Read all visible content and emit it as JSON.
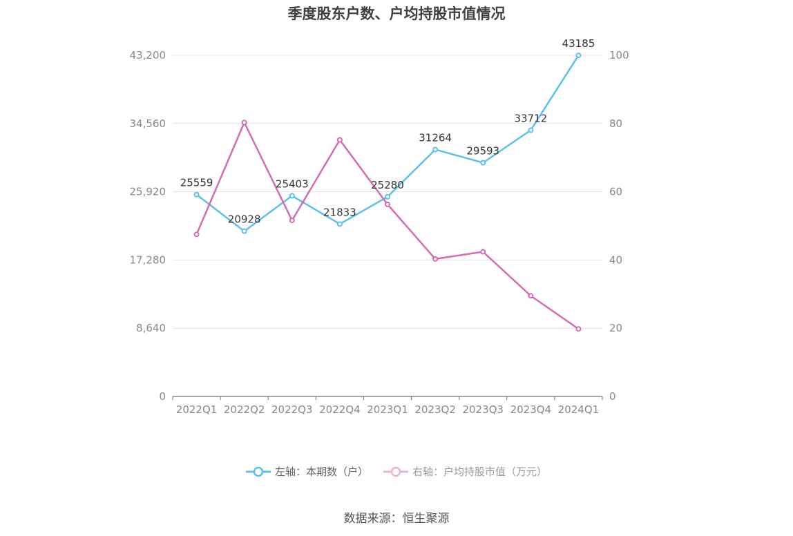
{
  "title": "季度股东户数、户均持股市值情况",
  "chart_data": {
    "type": "line",
    "categories": [
      "2022Q1",
      "2022Q2",
      "2022Q3",
      "2022Q4",
      "2023Q1",
      "2023Q2",
      "2023Q3",
      "2023Q4",
      "2024Q1"
    ],
    "left_axis": {
      "ticks": [
        "0",
        "8,640",
        "17,280",
        "25,920",
        "34,560",
        "43,200"
      ],
      "ylim": [
        0,
        43200
      ]
    },
    "right_axis": {
      "ticks": [
        "0",
        "20",
        "40",
        "60",
        "80",
        "100"
      ],
      "ylim": [
        0,
        100
      ]
    },
    "series": [
      {
        "name": "左轴：本期数（户）",
        "axis": "left",
        "color": "#5bc0eb",
        "values": [
          25559,
          20928,
          25403,
          21833,
          25280,
          31264,
          29593,
          33712,
          43185
        ],
        "labels": [
          "25559",
          "20928",
          "25403",
          "21833",
          "25280",
          "31264",
          "29593",
          "33712",
          "43185"
        ]
      },
      {
        "name": "右轴：户均持股市值（万元）",
        "axis": "right",
        "color": "#d66bb3",
        "values": [
          47.5,
          80.3,
          51.6,
          75.2,
          56.3,
          40.3,
          42.4,
          29.5,
          19.8
        ]
      }
    ],
    "grid": true,
    "legend_position": "bottom"
  },
  "source": "数据来源：恒生聚源"
}
